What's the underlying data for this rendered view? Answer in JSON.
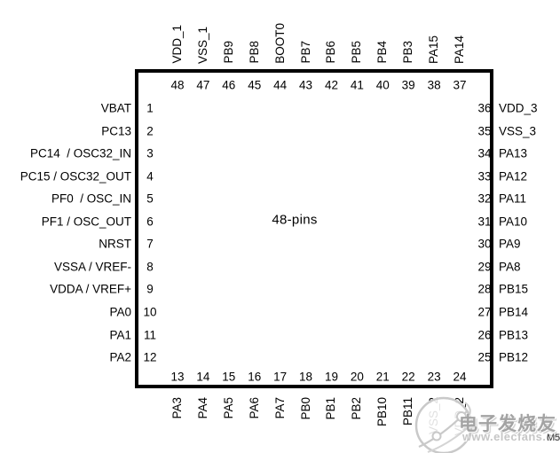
{
  "chip": {
    "center_label": "48-pins",
    "pins": {
      "top": [
        {
          "num": "48",
          "label": "VDD_1"
        },
        {
          "num": "47",
          "label": "VSS_1"
        },
        {
          "num": "46",
          "label": "PB9"
        },
        {
          "num": "45",
          "label": "PB8"
        },
        {
          "num": "44",
          "label": "BOOT0"
        },
        {
          "num": "43",
          "label": "PB7"
        },
        {
          "num": "42",
          "label": "PB6"
        },
        {
          "num": "41",
          "label": "PB5"
        },
        {
          "num": "40",
          "label": "PB4"
        },
        {
          "num": "39",
          "label": "PB3"
        },
        {
          "num": "38",
          "label": "PA15"
        },
        {
          "num": "37",
          "label": "PA14"
        }
      ],
      "left": [
        {
          "num": "1",
          "label": "VBAT"
        },
        {
          "num": "2",
          "label": "PC13"
        },
        {
          "num": "3",
          "label": "PC14  / OSC32_IN"
        },
        {
          "num": "4",
          "label": "PC15 / OSC32_OUT"
        },
        {
          "num": "5",
          "label": "PF0  / OSC_IN"
        },
        {
          "num": "6",
          "label": "PF1 / OSC_OUT"
        },
        {
          "num": "7",
          "label": "NRST"
        },
        {
          "num": "8",
          "label": "VSSA / VREF-"
        },
        {
          "num": "9",
          "label": "VDDA / VREF+"
        },
        {
          "num": "10",
          "label": "PA0"
        },
        {
          "num": "11",
          "label": "PA1"
        },
        {
          "num": "12",
          "label": "PA2"
        }
      ],
      "right": [
        {
          "num": "36",
          "label": "VDD_3"
        },
        {
          "num": "35",
          "label": "VSS_3"
        },
        {
          "num": "34",
          "label": "PA13"
        },
        {
          "num": "33",
          "label": "PA12"
        },
        {
          "num": "32",
          "label": "PA11"
        },
        {
          "num": "31",
          "label": "PA10"
        },
        {
          "num": "30",
          "label": "PA9"
        },
        {
          "num": "29",
          "label": "PA8"
        },
        {
          "num": "28",
          "label": "PB15"
        },
        {
          "num": "27",
          "label": "PB14"
        },
        {
          "num": "26",
          "label": "PB13"
        },
        {
          "num": "25",
          "label": "PB12"
        }
      ],
      "bottom": [
        {
          "num": "13",
          "label": "PA3"
        },
        {
          "num": "14",
          "label": "PA4"
        },
        {
          "num": "15",
          "label": "PA5"
        },
        {
          "num": "16",
          "label": "PA6"
        },
        {
          "num": "17",
          "label": "PA7"
        },
        {
          "num": "18",
          "label": "PB0"
        },
        {
          "num": "19",
          "label": "PB1"
        },
        {
          "num": "20",
          "label": "PB2"
        },
        {
          "num": "21",
          "label": "PB10"
        },
        {
          "num": "22",
          "label": "PB11"
        },
        {
          "num": "23",
          "label": "VSS_2"
        },
        {
          "num": "24",
          "label": "VDD_2"
        }
      ]
    }
  },
  "watermark": {
    "brand_text": "电子发烧友",
    "site_url": "www.elecfans.com",
    "corner_text": "M5"
  },
  "colors": {
    "line": "#000000",
    "text": "#000000",
    "watermark_gray": "#a3a3a3",
    "watermark_light": "#c6c6c6"
  }
}
